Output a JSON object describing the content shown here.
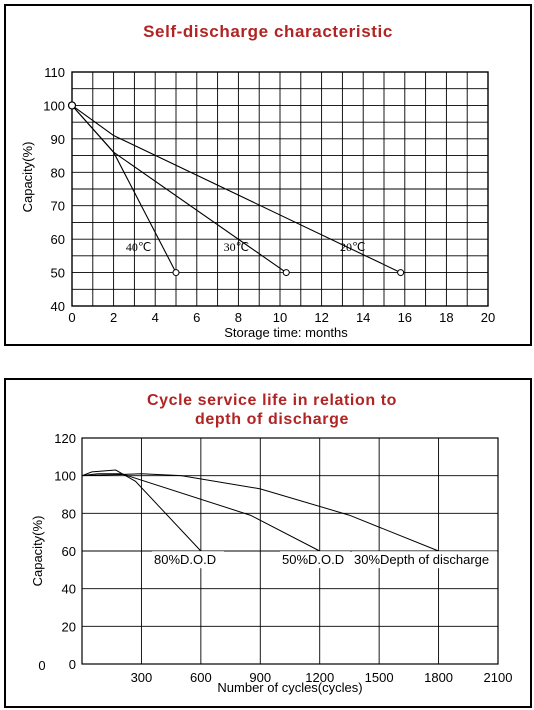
{
  "chart_data": [
    {
      "type": "line",
      "title": "Self-discharge characteristic",
      "xlabel": "Storage time: months",
      "ylabel": "Capacity(%)",
      "xlim": [
        0,
        20
      ],
      "ylim": [
        40,
        110
      ],
      "xticks": [
        0,
        2,
        4,
        6,
        8,
        10,
        12,
        14,
        16,
        18,
        20
      ],
      "yticks": [
        40,
        50,
        60,
        70,
        80,
        90,
        100,
        110
      ],
      "grid": true,
      "series": [
        {
          "name": "40℃",
          "x": [
            0,
            2,
            5
          ],
          "y": [
            100,
            86,
            50
          ]
        },
        {
          "name": "30℃",
          "x": [
            0,
            2,
            10.3
          ],
          "y": [
            100,
            86,
            50
          ]
        },
        {
          "name": "20℃",
          "x": [
            0,
            2,
            15.8
          ],
          "y": [
            100,
            91,
            50
          ]
        }
      ]
    },
    {
      "type": "line",
      "title": "Cycle service life in relation to depth of discharge",
      "title_lines": [
        "Cycle service life in relation to",
        "depth of discharge"
      ],
      "xlabel": "Number of cycles(cycles)",
      "ylabel": "Capacity(%)",
      "xlim": [
        0,
        2100
      ],
      "ylim": [
        0,
        120
      ],
      "xticks": [
        0,
        300,
        600,
        900,
        1200,
        1500,
        1800,
        2100
      ],
      "yticks": [
        0,
        20,
        40,
        60,
        80,
        100,
        120
      ],
      "grid": true,
      "series": [
        {
          "name": "80%D.O.D",
          "x": [
            0,
            50,
            170,
            270,
            600
          ],
          "y": [
            100,
            102,
            103,
            97,
            60
          ]
        },
        {
          "name": "50%D.O.D",
          "x": [
            0,
            80,
            200,
            850,
            1200
          ],
          "y": [
            100,
            101,
            101,
            79,
            60
          ]
        },
        {
          "name": "30%Depth of discharge",
          "x": [
            0,
            300,
            500,
            900,
            1350,
            1800
          ],
          "y": [
            100,
            101,
            100,
            93,
            79,
            60
          ]
        }
      ]
    }
  ]
}
